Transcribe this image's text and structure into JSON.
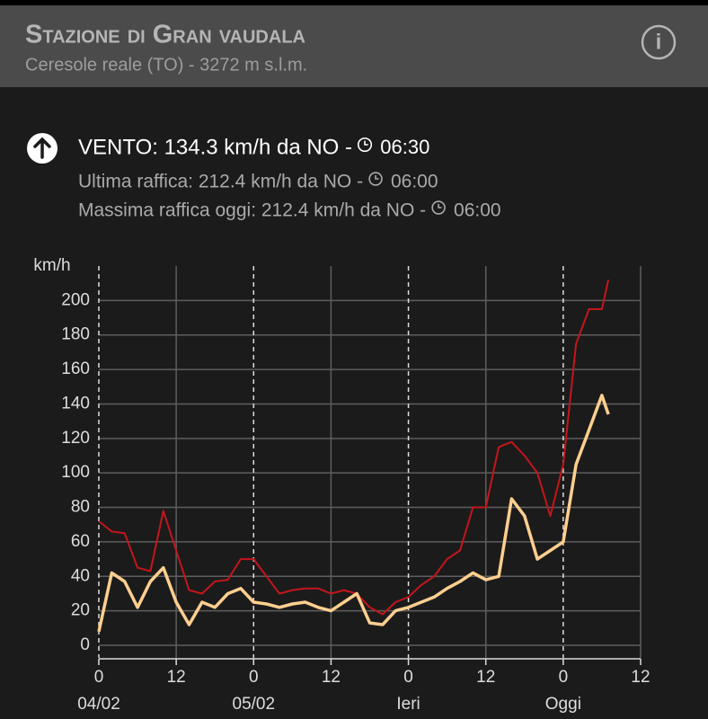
{
  "header": {
    "title": "Stazione di Gran vaudala",
    "subtitle": "Ceresole reale (TO) - 3272 m s.l.m."
  },
  "wind": {
    "main": "VENTO: 134.3 km/h da NO -",
    "main_time": "06:30",
    "last_gust": "Ultima raffica: 212.4 km/h da NO -",
    "last_gust_time": "06:00",
    "max_gust": "Massima raffica oggi: 212.4 km/h da NO -",
    "max_gust_time": "06:00"
  },
  "chart_data": {
    "type": "line",
    "y_label": "km/h",
    "x": [
      0,
      2,
      4,
      6,
      8,
      10,
      12,
      14,
      16,
      18,
      20,
      22,
      24,
      26,
      28,
      30,
      32,
      34,
      36,
      38,
      40,
      42,
      44,
      46,
      48,
      50,
      52,
      54,
      56,
      58,
      60,
      62,
      64,
      66,
      68,
      70,
      72,
      74,
      76,
      78,
      79
    ],
    "xlim": [
      0,
      84
    ],
    "xticks": [
      {
        "value": 0,
        "label": "0"
      },
      {
        "value": 12,
        "label": "12"
      },
      {
        "value": 24,
        "label": "0"
      },
      {
        "value": 36,
        "label": "12"
      },
      {
        "value": 48,
        "label": "0"
      },
      {
        "value": 60,
        "label": "12"
      },
      {
        "value": 72,
        "label": "0"
      },
      {
        "value": 84,
        "label": "12"
      }
    ],
    "day_labels": [
      {
        "value": 0,
        "label": "04/02"
      },
      {
        "value": 24,
        "label": "05/02"
      },
      {
        "value": 48,
        "label": "Ieri"
      },
      {
        "value": 72,
        "label": "Oggi"
      }
    ],
    "ylim": [
      0,
      220
    ],
    "yticks": [
      0,
      20,
      40,
      60,
      80,
      100,
      120,
      140,
      160,
      180,
      200
    ],
    "grid": true,
    "series": [
      {
        "color": "#c4161c",
        "values": [
          72,
          66,
          65,
          45,
          43,
          78,
          55,
          32,
          30,
          37,
          38,
          50,
          50,
          40,
          30,
          32,
          33,
          33,
          30,
          32,
          30,
          22,
          18,
          25,
          28,
          35,
          40,
          50,
          55,
          80,
          80,
          115,
          118,
          110,
          100,
          75,
          105,
          175,
          195,
          195,
          212
        ]
      },
      {
        "color": "#ffcf8f",
        "values": [
          8,
          42,
          37,
          22,
          37,
          45,
          25,
          12,
          25,
          22,
          30,
          33,
          25,
          24,
          22,
          24,
          25,
          22,
          20,
          25,
          30,
          13,
          12,
          20,
          22,
          25,
          28,
          33,
          37,
          42,
          38,
          40,
          85,
          75,
          50,
          55,
          60,
          105,
          125,
          145,
          134
        ]
      }
    ]
  }
}
